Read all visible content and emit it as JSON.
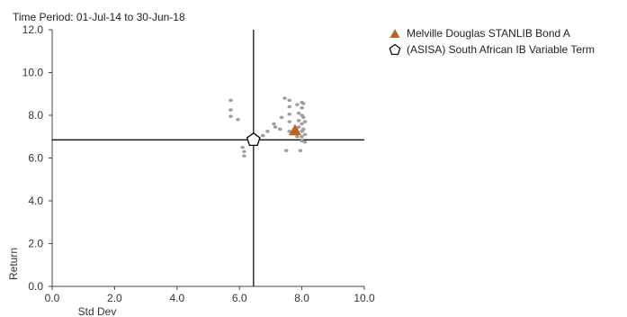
{
  "header": {
    "time_period": "Time Period: 01-Jul-14 to 30-Jun-18"
  },
  "chart_data": {
    "type": "scatter",
    "title": "",
    "xlabel": "Std Dev",
    "ylabel": "Return",
    "xlim": [
      0,
      10
    ],
    "ylim": [
      0,
      12
    ],
    "xticks": [
      "0.0",
      "2.0",
      "4.0",
      "6.0",
      "8.0",
      "10.0"
    ],
    "yticks": [
      "0.0",
      "2.0",
      "4.0",
      "6.0",
      "8.0",
      "10.0",
      "12.0"
    ],
    "grid": false,
    "legend_position": "top-right",
    "crosshair": {
      "x": 6.45,
      "y": 6.85
    },
    "peer_color": "#9e9e9e",
    "fund_color": "#b5652b",
    "series": [
      {
        "name": "Melville Douglas STANLIB Bond A",
        "marker": "triangle",
        "points": [
          [
            7.78,
            7.3
          ]
        ]
      },
      {
        "name": "(ASISA) South African IB Variable Term",
        "marker": "pentagon",
        "points": [
          [
            6.45,
            6.85
          ]
        ]
      },
      {
        "name": "",
        "marker": "dot",
        "points": [
          [
            5.72,
            8.7
          ],
          [
            5.72,
            8.25
          ],
          [
            5.72,
            7.95
          ],
          [
            5.95,
            7.8
          ],
          [
            6.1,
            6.5
          ],
          [
            6.15,
            6.3
          ],
          [
            6.15,
            6.1
          ],
          [
            6.75,
            7.05
          ],
          [
            6.9,
            7.25
          ],
          [
            7.1,
            7.6
          ],
          [
            7.15,
            7.45
          ],
          [
            7.3,
            7.35
          ],
          [
            7.35,
            7.9
          ],
          [
            7.45,
            8.8
          ],
          [
            7.6,
            8.7
          ],
          [
            7.6,
            8.4
          ],
          [
            7.6,
            8.05
          ],
          [
            7.6,
            7.7
          ],
          [
            7.6,
            7.25
          ],
          [
            7.5,
            6.35
          ],
          [
            7.85,
            7.0
          ],
          [
            7.95,
            6.35
          ],
          [
            7.85,
            8.5
          ],
          [
            7.9,
            8.1
          ],
          [
            7.9,
            7.75
          ],
          [
            7.9,
            7.45
          ],
          [
            8.0,
            8.6
          ],
          [
            8.0,
            8.35
          ],
          [
            8.0,
            8.0
          ],
          [
            8.0,
            7.6
          ],
          [
            8.0,
            7.25
          ],
          [
            8.0,
            7.0
          ],
          [
            8.0,
            6.8
          ],
          [
            8.05,
            8.55
          ],
          [
            8.05,
            7.9
          ],
          [
            8.05,
            7.35
          ],
          [
            8.1,
            7.7
          ],
          [
            8.1,
            7.1
          ],
          [
            8.1,
            6.75
          ]
        ]
      }
    ]
  }
}
